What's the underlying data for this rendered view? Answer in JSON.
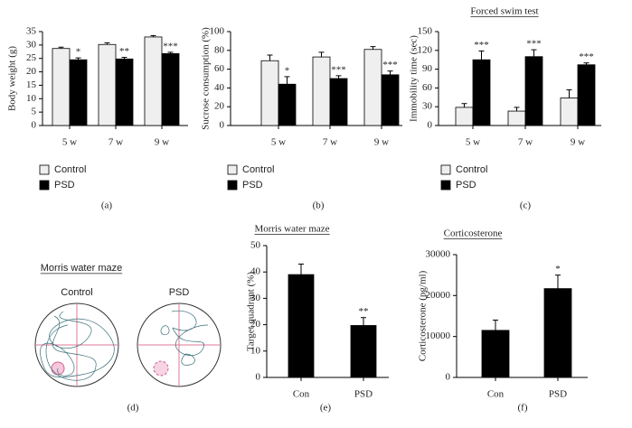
{
  "chart_data": [
    {
      "type": "bar",
      "ylabel": "Body weight (g)",
      "categories": [
        "5 w",
        "7 w",
        "9 w"
      ],
      "series": [
        {
          "name": "Control",
          "color": "#efefef",
          "values": [
            28.7,
            30.2,
            33.0
          ],
          "errors": [
            0.5,
            0.6,
            0.5
          ]
        },
        {
          "name": "PSD",
          "color": "#000000",
          "values": [
            24.5,
            24.8,
            26.8
          ],
          "errors": [
            0.7,
            0.6,
            0.5
          ],
          "annotations": [
            "*",
            "**",
            "***"
          ]
        }
      ],
      "ylim": [
        0,
        35
      ],
      "yticks": [
        0,
        5,
        10,
        15,
        20,
        25,
        30,
        35
      ],
      "legend": "below",
      "caption": "(a)"
    },
    {
      "type": "bar",
      "ylabel": "Sucrose consumption (%)",
      "categories": [
        "5 w",
        "7 w",
        "9 w"
      ],
      "series": [
        {
          "name": "Control",
          "color": "#efefef",
          "values": [
            69,
            73,
            81
          ],
          "errors": [
            6,
            5,
            3
          ]
        },
        {
          "name": "PSD",
          "color": "#000000",
          "values": [
            44,
            50,
            54
          ],
          "errors": [
            8,
            3,
            4
          ],
          "annotations": [
            "*",
            "***",
            "***"
          ]
        }
      ],
      "ylim": [
        0,
        100
      ],
      "yticks": [
        0,
        20,
        40,
        60,
        80,
        100
      ],
      "legend": "below",
      "caption": "(b)"
    },
    {
      "type": "bar",
      "title": "Forced swim test",
      "ylabel": "Immobility time (sec)",
      "categories": [
        "5 w",
        "7 w",
        "9 w"
      ],
      "series": [
        {
          "name": "Control",
          "color": "#efefef",
          "values": [
            29,
            23,
            44
          ],
          "errors": [
            6,
            6,
            13
          ]
        },
        {
          "name": "PSD",
          "color": "#000000",
          "values": [
            105,
            110,
            97
          ],
          "errors": [
            14,
            11,
            3
          ],
          "annotations": [
            "***",
            "***",
            "***"
          ]
        }
      ],
      "ylim": [
        0,
        150
      ],
      "yticks": [
        0,
        30,
        60,
        90,
        120,
        150
      ],
      "legend": "below",
      "caption": "(c)"
    },
    {
      "type": "bar",
      "title": "Morris water maze",
      "ylabel": "Target quadrant (%)",
      "categories": [
        "Con",
        "PSD"
      ],
      "values": [
        39,
        19.7
      ],
      "errors": [
        4,
        3
      ],
      "annotations": [
        null,
        "**"
      ],
      "color": "#000000",
      "ylim": [
        0,
        50
      ],
      "yticks": [
        0,
        10,
        20,
        30,
        40,
        50
      ],
      "caption": "(e)"
    },
    {
      "type": "bar",
      "title": "Corticosterone",
      "ylabel": "Corticosterone (pg/ml)",
      "categories": [
        "Con",
        "PSD"
      ],
      "values": [
        11500,
        21700
      ],
      "errors": [
        2500,
        3300
      ],
      "annotations": [
        null,
        "*"
      ],
      "color": "#000000",
      "ylim": [
        0,
        30000
      ],
      "yticks": [
        0,
        10000,
        20000,
        30000
      ],
      "caption": "(f)"
    }
  ],
  "maze": {
    "title": "Morris water maze",
    "labels": [
      "Control",
      "PSD"
    ],
    "caption": "(d)"
  }
}
